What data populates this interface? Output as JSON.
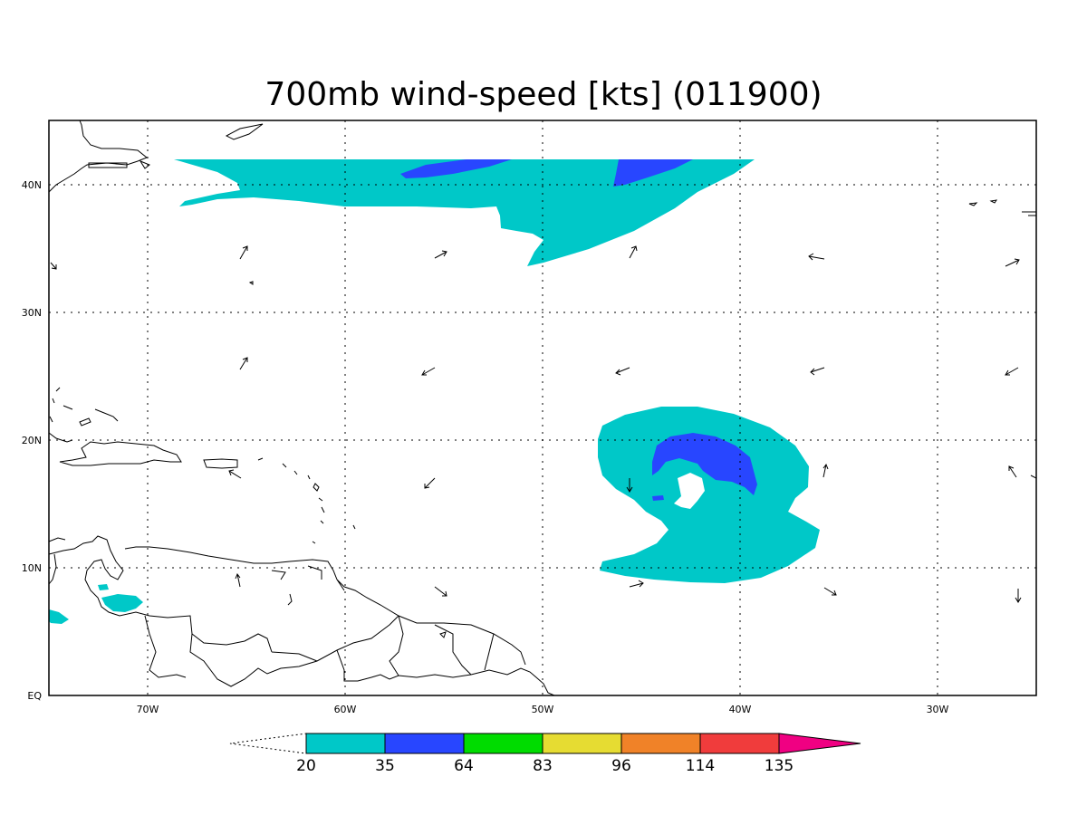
{
  "title": "700mb wind-speed [kts] (011900)",
  "map": {
    "lon_range": [
      -75,
      -25
    ],
    "lat_range": [
      0,
      45
    ],
    "lon_ticks": [
      {
        "value": -70,
        "label": "70W"
      },
      {
        "value": -60,
        "label": "60W"
      },
      {
        "value": -50,
        "label": "50W"
      },
      {
        "value": -40,
        "label": "40W"
      },
      {
        "value": -30,
        "label": "30W"
      }
    ],
    "lat_ticks": [
      {
        "value": 0,
        "label": "EQ"
      },
      {
        "value": 10,
        "label": "10N"
      },
      {
        "value": 20,
        "label": "20N"
      },
      {
        "value": 30,
        "label": "30N"
      },
      {
        "value": 40,
        "label": "40N"
      }
    ],
    "grid": "dotted"
  },
  "colorbar": {
    "labels": [
      "20",
      "35",
      "64",
      "83",
      "96",
      "114",
      "135"
    ],
    "colors": [
      "#00c8c8",
      "#2846ff",
      "#00dc00",
      "#e6dc32",
      "#f08228",
      "#f03c3c",
      "#f00082"
    ],
    "below_color": "#ffffff"
  },
  "fill_colors": {
    "band_20_35": "#00c8c8",
    "band_35_64": "#2846ff",
    "coast": "#000000"
  }
}
